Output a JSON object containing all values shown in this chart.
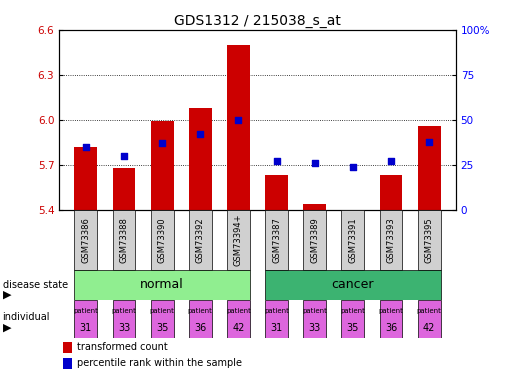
{
  "title": "GDS1312 / 215038_s_at",
  "samples": [
    "GSM73386",
    "GSM73388",
    "GSM73390",
    "GSM73392",
    "GSM73394+",
    "GSM73387",
    "GSM73389",
    "GSM73391",
    "GSM73393",
    "GSM73395"
  ],
  "transformed_count": [
    5.82,
    5.68,
    5.99,
    6.08,
    6.5,
    5.63,
    5.44,
    5.4,
    5.63,
    5.96
  ],
  "percentile_rank": [
    35,
    30,
    37,
    42,
    50,
    27,
    26,
    24,
    27,
    38
  ],
  "ylim_left": [
    5.4,
    6.6
  ],
  "ylim_right": [
    0,
    100
  ],
  "yticks_left": [
    5.4,
    5.7,
    6.0,
    6.3,
    6.6
  ],
  "yticks_right": [
    0,
    25,
    50,
    75,
    100
  ],
  "bar_color": "#cc0000",
  "dot_color": "#0000cc",
  "normal_color": "#90ee90",
  "cancer_color": "#3cb371",
  "individual_color": "#dd66dd",
  "patients_normal": [
    "31",
    "33",
    "35",
    "36",
    "42"
  ],
  "patients_cancer": [
    "31",
    "33",
    "35",
    "36",
    "42"
  ],
  "legend1": "transformed count",
  "legend2": "percentile rank within the sample",
  "base_value": 5.4
}
